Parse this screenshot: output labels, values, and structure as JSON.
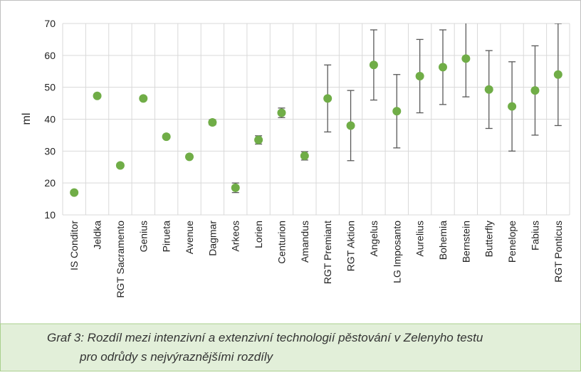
{
  "chart_data": {
    "type": "scatter",
    "y_label": "ml",
    "categories": [
      "IS Conditor",
      "Jeldka",
      "RGT Sacramento",
      "Genius",
      "Pirueta",
      "Avenue",
      "Dagmar",
      "Arkeos",
      "Lorien",
      "Centurion",
      "Amandus",
      "RGT Premiant",
      "RGT Aktion",
      "Angelus",
      "LG Imposanto",
      "Aurelius",
      "Bohemia",
      "Bernstein",
      "Butterfly",
      "Penelope",
      "Fabius",
      "RGT Ponticus"
    ],
    "values": [
      17,
      47.3,
      25.5,
      46.5,
      34.5,
      28.2,
      39,
      18.5,
      33.5,
      42,
      28.5,
      46.5,
      38,
      57,
      42.5,
      53.5,
      56.3,
      59,
      49.3,
      44,
      49,
      54
    ],
    "errors": [
      0.4,
      0.5,
      0.5,
      0.5,
      0.5,
      0.5,
      0.8,
      1.5,
      1.3,
      1.5,
      1.3,
      10.5,
      11,
      11,
      11.5,
      11.5,
      11.7,
      12,
      12.2,
      14,
      14,
      16
    ],
    "color": "#70ad47",
    "error_color": "#595959",
    "ylim": [
      10,
      70
    ],
    "yticks": [
      10,
      20,
      30,
      40,
      50,
      60,
      70
    ],
    "grid": true
  },
  "caption": [
    "Graf 3: Rozdíl mezi intenzivní a extenzivní technologií pěstování v Zelenyho testu",
    "pro odrůdy s nejvýraznějšími rozdíly"
  ]
}
